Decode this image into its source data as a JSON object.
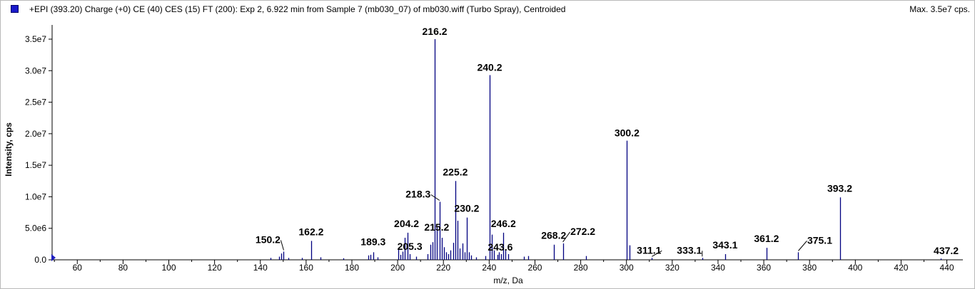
{
  "header": {
    "title": "+EPI (393.20) Charge (+0) CE (40) CES (15) FT (200): Exp 2, 6.922 min from Sample 7 (mb030_07) of mb030.wiff (Turbo Spray), Centroided",
    "max": "Max. 3.5e7 cps.",
    "marker_color": "#1a1acb"
  },
  "chart_data": {
    "type": "bar",
    "style": "stick spectrum",
    "xlabel": "m/z, Da",
    "ylabel": "Intensity, cps",
    "xlim": [
      49,
      447
    ],
    "ylim": [
      0,
      35500000.0
    ],
    "x_ticks": [
      "60",
      "80",
      "100",
      "120",
      "140",
      "160",
      "180",
      "200",
      "220",
      "240",
      "260",
      "280",
      "300",
      "320",
      "340",
      "360",
      "380",
      "400",
      "420",
      "440"
    ],
    "y_ticks": [
      "0.0",
      "5.0e6",
      "1.0e7",
      "1.5e7",
      "2.0e7",
      "2.5e7",
      "3.0e7",
      "3.5e7"
    ],
    "y_tick_values": [
      0,
      5000000,
      10000000,
      15000000,
      20000000,
      25000000,
      30000000,
      35000000
    ],
    "x_tick_values": [
      60,
      80,
      100,
      120,
      140,
      160,
      180,
      200,
      220,
      240,
      260,
      280,
      300,
      320,
      340,
      360,
      380,
      400,
      420,
      440
    ],
    "grid": false,
    "bar_color": "#000080",
    "peaks": [
      {
        "mz": 144.3,
        "intensity": 300000
      },
      {
        "mz": 148.3,
        "intensity": 500000
      },
      {
        "mz": 149.2,
        "intensity": 1000000
      },
      {
        "mz": 150.2,
        "intensity": 1300000,
        "label": "150.2"
      },
      {
        "mz": 152.2,
        "intensity": 300000
      },
      {
        "mz": 158.2,
        "intensity": 300000
      },
      {
        "mz": 162.2,
        "intensity": 3000000,
        "label": "162.2"
      },
      {
        "mz": 166.2,
        "intensity": 400000
      },
      {
        "mz": 176.2,
        "intensity": 250000
      },
      {
        "mz": 187.2,
        "intensity": 700000
      },
      {
        "mz": 188.2,
        "intensity": 800000
      },
      {
        "mz": 189.3,
        "intensity": 1200000,
        "label": "189.3"
      },
      {
        "mz": 191.2,
        "intensity": 400000
      },
      {
        "mz": 200.2,
        "intensity": 1600000
      },
      {
        "mz": 201.2,
        "intensity": 800000
      },
      {
        "mz": 202.2,
        "intensity": 1300000
      },
      {
        "mz": 203.2,
        "intensity": 3500000
      },
      {
        "mz": 204.2,
        "intensity": 4300000,
        "label": "204.2"
      },
      {
        "mz": 205.3,
        "intensity": 900000,
        "label": "205.3"
      },
      {
        "mz": 208.2,
        "intensity": 500000
      },
      {
        "mz": 213.2,
        "intensity": 900000
      },
      {
        "mz": 214.2,
        "intensity": 2400000
      },
      {
        "mz": 215.2,
        "intensity": 2800000,
        "label": "215.2"
      },
      {
        "mz": 216.2,
        "intensity": 35000000,
        "label": "216.2"
      },
      {
        "mz": 217.2,
        "intensity": 5200000
      },
      {
        "mz": 218.3,
        "intensity": 9200000,
        "label": "218.3"
      },
      {
        "mz": 219.2,
        "intensity": 3500000
      },
      {
        "mz": 220.2,
        "intensity": 2000000
      },
      {
        "mz": 221.2,
        "intensity": 1200000
      },
      {
        "mz": 222.2,
        "intensity": 900000
      },
      {
        "mz": 223.2,
        "intensity": 1500000
      },
      {
        "mz": 224.2,
        "intensity": 2700000
      },
      {
        "mz": 225.2,
        "intensity": 12500000,
        "label": "225.2"
      },
      {
        "mz": 226.2,
        "intensity": 6200000
      },
      {
        "mz": 227.2,
        "intensity": 1800000
      },
      {
        "mz": 228.2,
        "intensity": 2600000
      },
      {
        "mz": 229.2,
        "intensity": 1200000
      },
      {
        "mz": 230.2,
        "intensity": 6700000,
        "label": "230.2"
      },
      {
        "mz": 231.2,
        "intensity": 1200000
      },
      {
        "mz": 232.2,
        "intensity": 700000
      },
      {
        "mz": 234.2,
        "intensity": 400000
      },
      {
        "mz": 238.2,
        "intensity": 600000
      },
      {
        "mz": 240.2,
        "intensity": 29300000,
        "label": "240.2"
      },
      {
        "mz": 241.2,
        "intensity": 4000000
      },
      {
        "mz": 242.2,
        "intensity": 1500000
      },
      {
        "mz": 243.6,
        "intensity": 800000,
        "label": "243.6"
      },
      {
        "mz": 244.2,
        "intensity": 1200000
      },
      {
        "mz": 245.2,
        "intensity": 900000
      },
      {
        "mz": 246.2,
        "intensity": 4300000,
        "label": "246.2"
      },
      {
        "mz": 247.2,
        "intensity": 1500000
      },
      {
        "mz": 248.2,
        "intensity": 900000
      },
      {
        "mz": 255.2,
        "intensity": 500000
      },
      {
        "mz": 257.2,
        "intensity": 600000
      },
      {
        "mz": 268.2,
        "intensity": 2400000,
        "label": "268.2"
      },
      {
        "mz": 272.2,
        "intensity": 2600000,
        "label": "272.2"
      },
      {
        "mz": 282.2,
        "intensity": 600000
      },
      {
        "mz": 300.2,
        "intensity": 18900000,
        "label": "300.2"
      },
      {
        "mz": 301.2,
        "intensity": 2300000
      },
      {
        "mz": 311.1,
        "intensity": 300000,
        "label": "311.1"
      },
      {
        "mz": 333.1,
        "intensity": 300000,
        "label": "333.1"
      },
      {
        "mz": 343.1,
        "intensity": 900000,
        "label": "343.1"
      },
      {
        "mz": 361.2,
        "intensity": 1900000,
        "label": "361.2"
      },
      {
        "mz": 375.1,
        "intensity": 1200000,
        "label": "375.1"
      },
      {
        "mz": 393.2,
        "intensity": 9900000,
        "label": "393.2"
      },
      {
        "mz": 437.2,
        "intensity": 200000,
        "label": "437.2"
      }
    ]
  }
}
